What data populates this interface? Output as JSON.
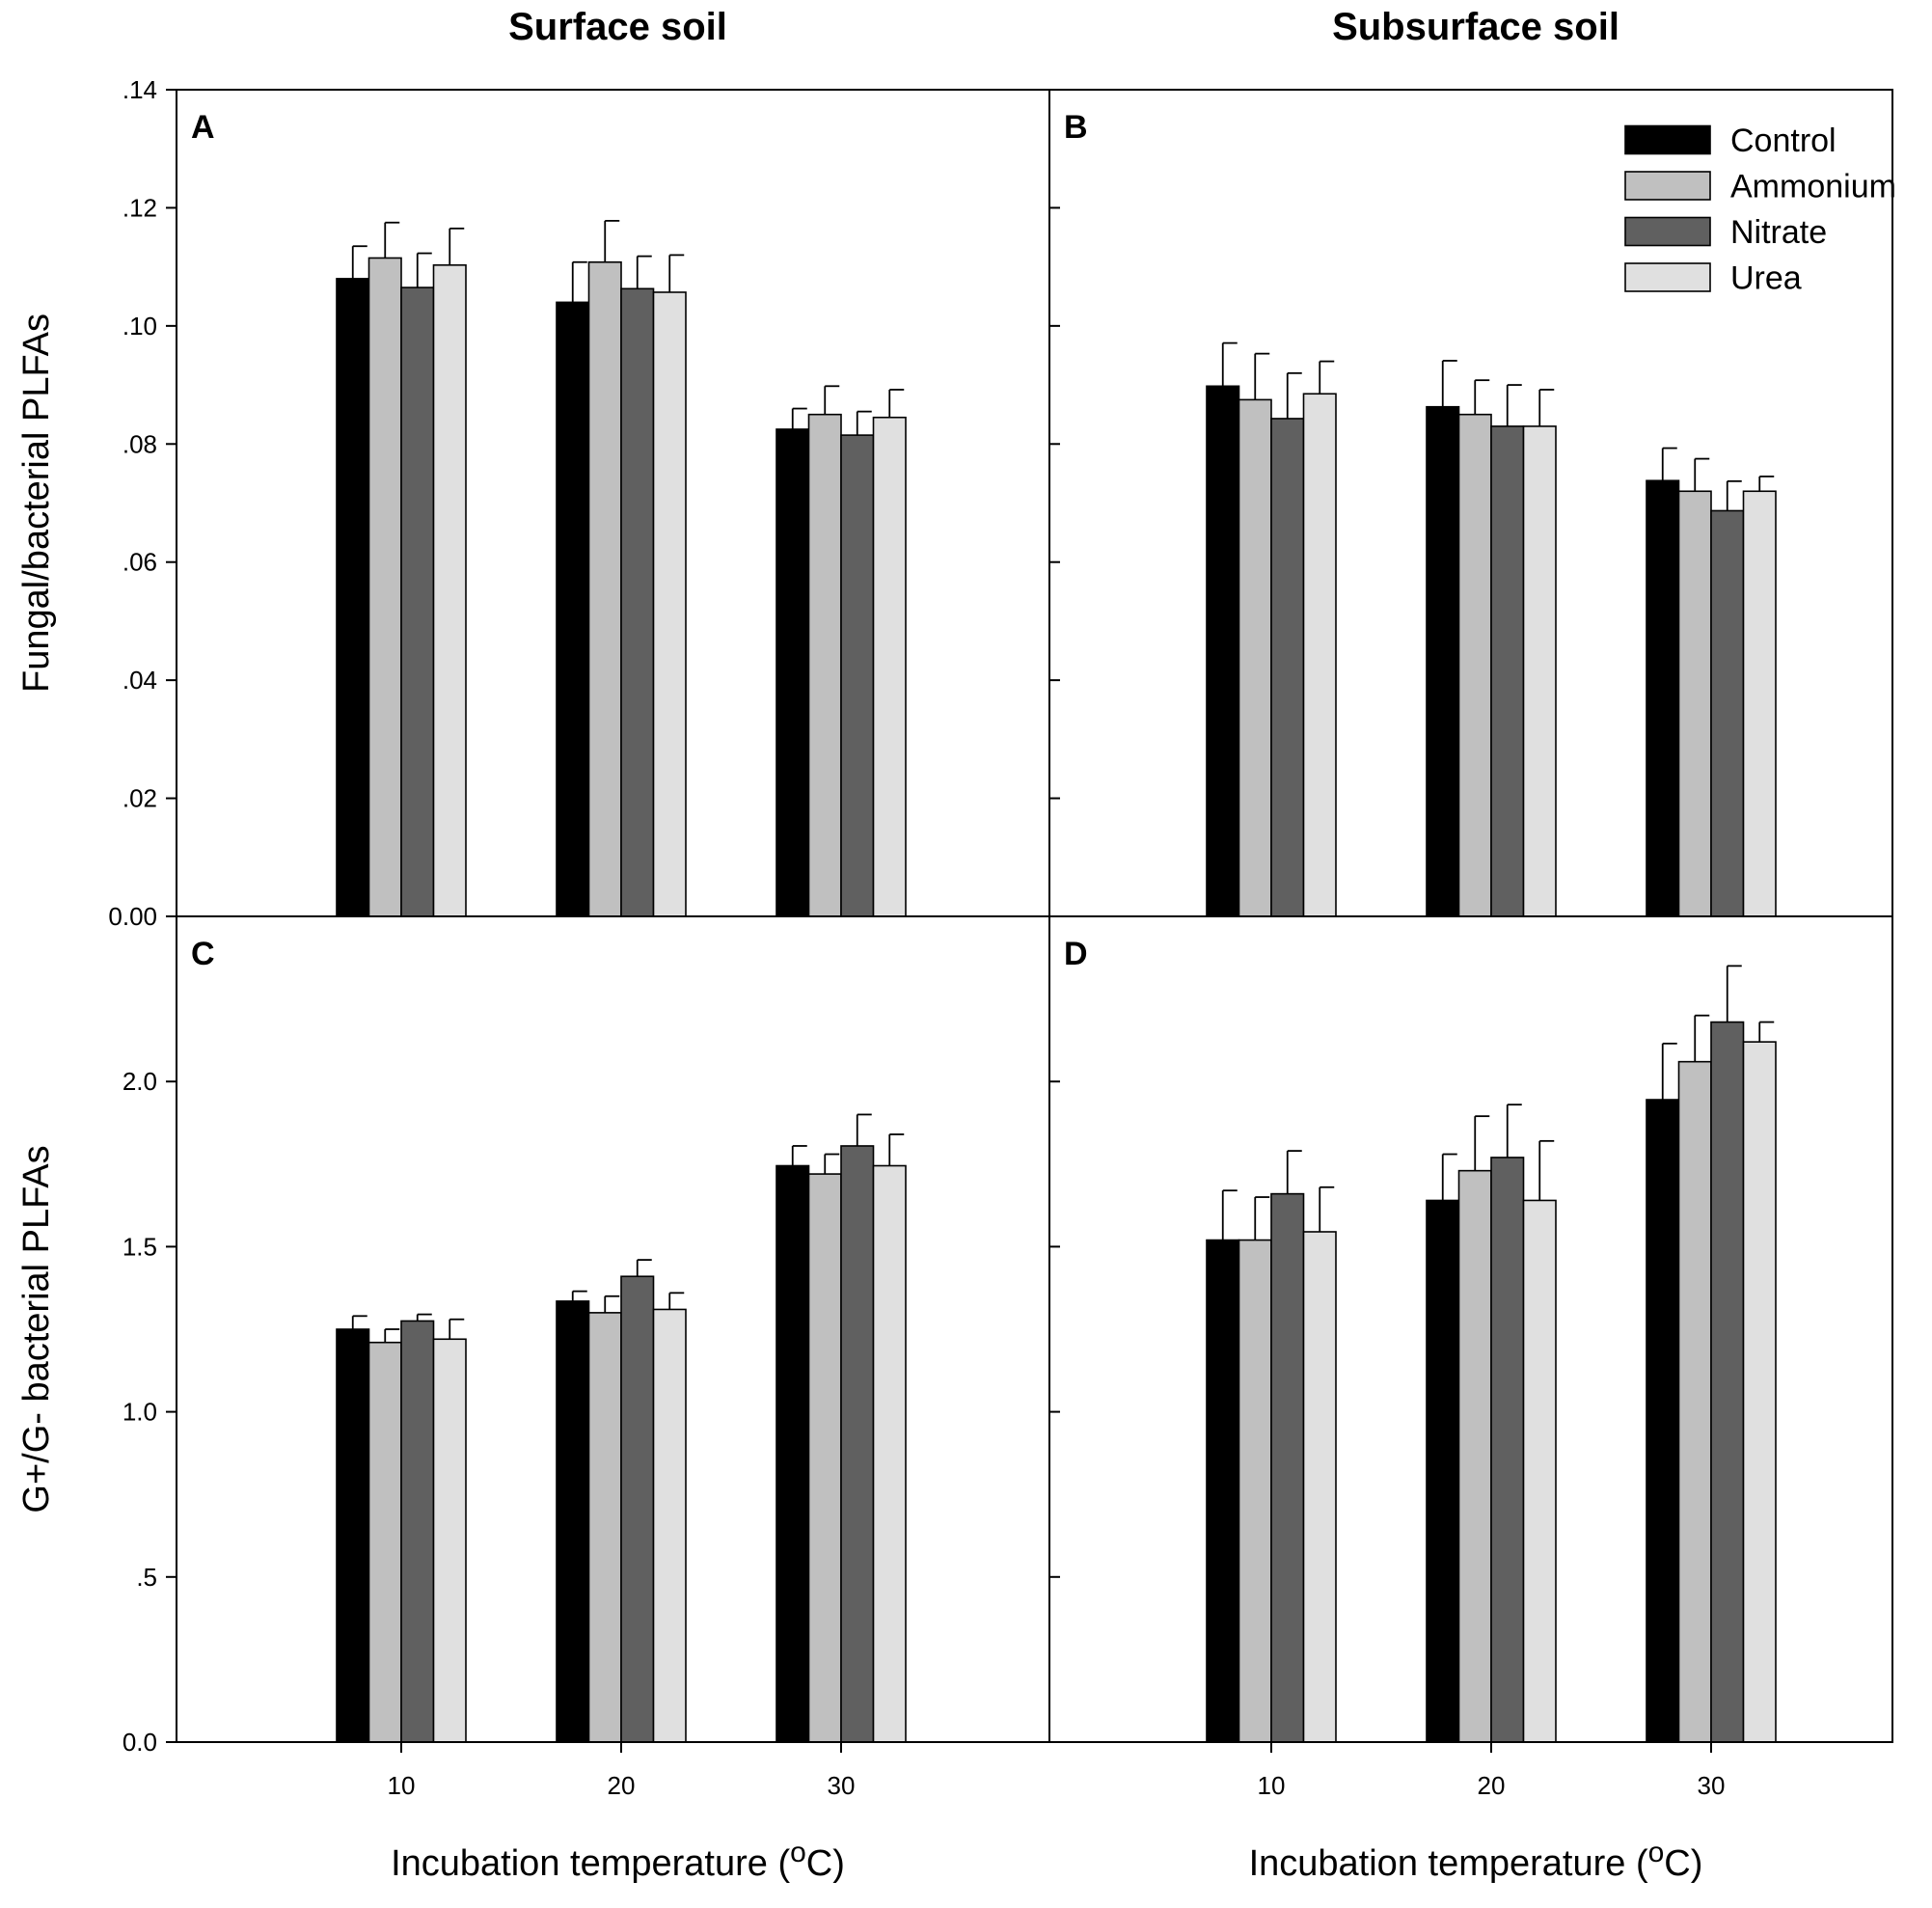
{
  "colors": {
    "Control": "#000000",
    "Ammonium": "#c0c0c0",
    "Nitrate": "#606060",
    "Urea": "#e0e0e0"
  },
  "chart_data": {
    "type": "bar",
    "column_titles": [
      "Surface soil",
      "Subsurface soil"
    ],
    "xlabel_prefix": "Incubation temperature (",
    "xlabel_degree": "o",
    "xlabel_suffix": "C)",
    "rows": [
      {
        "ylabel": "Fungal/bacterial PLFAs",
        "ylim": [
          0,
          0.14
        ],
        "ticks": [
          {
            "value": 0,
            "label": "0.00"
          },
          {
            "value": 0.02,
            "label": ".02"
          },
          {
            "value": 0.04,
            "label": ".04"
          },
          {
            "value": 0.06,
            "label": ".06"
          },
          {
            "value": 0.08,
            "label": ".08"
          },
          {
            "value": 0.1,
            "label": ".10"
          },
          {
            "value": 0.12,
            "label": ".12"
          },
          {
            "value": 0.14,
            "label": ".14"
          }
        ]
      },
      {
        "ylabel": "G+/G- bacterial PLFAs",
        "ylim": [
          0,
          2.5
        ],
        "ticks": [
          {
            "value": 0,
            "label": "0.0"
          },
          {
            "value": 0.5,
            "label": ".5"
          },
          {
            "value": 1.0,
            "label": "1.0"
          },
          {
            "value": 1.5,
            "label": "1.5"
          },
          {
            "value": 2.0,
            "label": "2.0"
          }
        ]
      }
    ],
    "categories": [
      "10",
      "20",
      "30"
    ],
    "series_names": [
      "Control",
      "Ammonium",
      "Nitrate",
      "Urea"
    ],
    "legend": {
      "panel": "B",
      "position": "top-right"
    },
    "panels": [
      {
        "label": "A",
        "row": 0,
        "col": 0,
        "series": [
          {
            "name": "Control",
            "values": [
              0.108,
              0.104,
              0.0825
            ],
            "errors": [
              0.0055,
              0.0068,
              0.0035
            ]
          },
          {
            "name": "Ammonium",
            "values": [
              0.1115,
              0.1108,
              0.085
            ],
            "errors": [
              0.006,
              0.007,
              0.0048
            ]
          },
          {
            "name": "Nitrate",
            "values": [
              0.1065,
              0.1063,
              0.0815
            ],
            "errors": [
              0.0058,
              0.0055,
              0.004
            ]
          },
          {
            "name": "Urea",
            "values": [
              0.1103,
              0.1057,
              0.0845
            ],
            "errors": [
              0.0062,
              0.0063,
              0.0047
            ]
          }
        ]
      },
      {
        "label": "B",
        "row": 0,
        "col": 1,
        "series": [
          {
            "name": "Control",
            "values": [
              0.0898,
              0.0863,
              0.0738
            ],
            "errors": [
              0.0073,
              0.0078,
              0.0055
            ]
          },
          {
            "name": "Ammonium",
            "values": [
              0.0875,
              0.085,
              0.072
            ],
            "errors": [
              0.0078,
              0.0058,
              0.0055
            ]
          },
          {
            "name": "Nitrate",
            "values": [
              0.0843,
              0.083,
              0.0687
            ],
            "errors": [
              0.0077,
              0.007,
              0.005
            ]
          },
          {
            "name": "Urea",
            "values": [
              0.0885,
              0.083,
              0.072
            ],
            "errors": [
              0.0055,
              0.0062,
              0.0025
            ]
          }
        ]
      },
      {
        "label": "C",
        "row": 1,
        "col": 0,
        "series": [
          {
            "name": "Control",
            "values": [
              1.25,
              1.335,
              1.745
            ],
            "errors": [
              0.04,
              0.03,
              0.06
            ]
          },
          {
            "name": "Ammonium",
            "values": [
              1.21,
              1.3,
              1.72
            ],
            "errors": [
              0.04,
              0.05,
              0.06
            ]
          },
          {
            "name": "Nitrate",
            "values": [
              1.275,
              1.41,
              1.805
            ],
            "errors": [
              0.02,
              0.05,
              0.095
            ]
          },
          {
            "name": "Urea",
            "values": [
              1.22,
              1.31,
              1.745
            ],
            "errors": [
              0.06,
              0.05,
              0.095
            ]
          }
        ]
      },
      {
        "label": "D",
        "row": 1,
        "col": 1,
        "series": [
          {
            "name": "Control",
            "values": [
              1.52,
              1.64,
              1.945
            ],
            "errors": [
              0.15,
              0.14,
              0.17
            ]
          },
          {
            "name": "Ammonium",
            "values": [
              1.52,
              1.73,
              2.06
            ],
            "errors": [
              0.13,
              0.165,
              0.14
            ]
          },
          {
            "name": "Nitrate",
            "values": [
              1.66,
              1.77,
              2.18
            ],
            "errors": [
              0.13,
              0.16,
              0.17
            ]
          },
          {
            "name": "Urea",
            "values": [
              1.545,
              1.64,
              2.12
            ],
            "errors": [
              0.135,
              0.18,
              0.06
            ]
          }
        ]
      }
    ]
  }
}
